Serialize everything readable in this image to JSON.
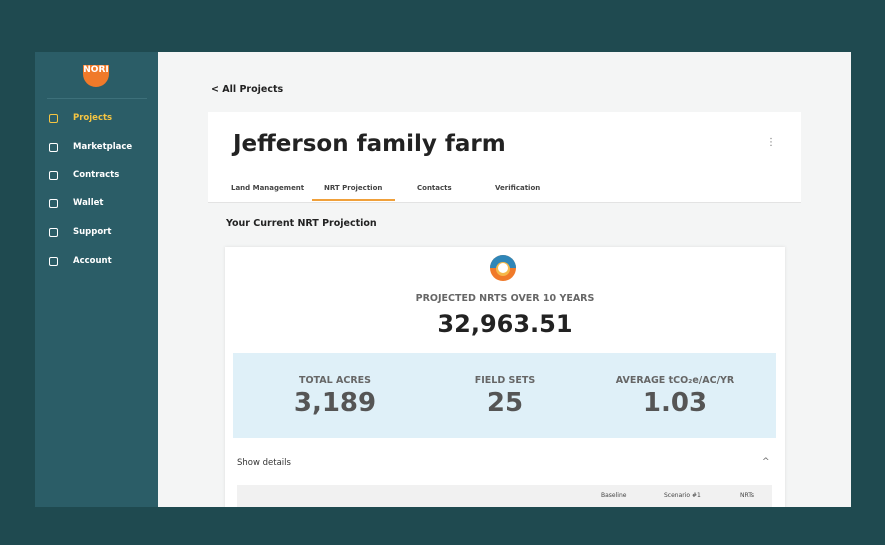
{
  "sidebar": {
    "logo": "NORI",
    "nav": [
      "Projects",
      "Marketplace",
      "Contracts",
      "Wallet",
      "Support",
      "Account"
    ]
  },
  "header": {
    "back": "< All Projects",
    "title": "Jefferson family farm"
  },
  "tabs": [
    "Land Management",
    "NRT Projection",
    "Contacts",
    "Verification"
  ],
  "section": {
    "title": "Your Current NRT Projection",
    "projected": {
      "label": "PROJECTED NRTS OVER 10 YEARS",
      "value": "32,963.51"
    },
    "stats": [
      {
        "label": "TOTAL ACRES",
        "value": "3,189"
      },
      {
        "label": "FIELD SETS",
        "value": "25"
      },
      {
        "label": "AVERAGE tCO₂e/AC/YR",
        "value": "1.03"
      }
    ],
    "details": "Show details",
    "table_headers": [
      "Baseline",
      "Scenario #1",
      "NRTs"
    ]
  }
}
